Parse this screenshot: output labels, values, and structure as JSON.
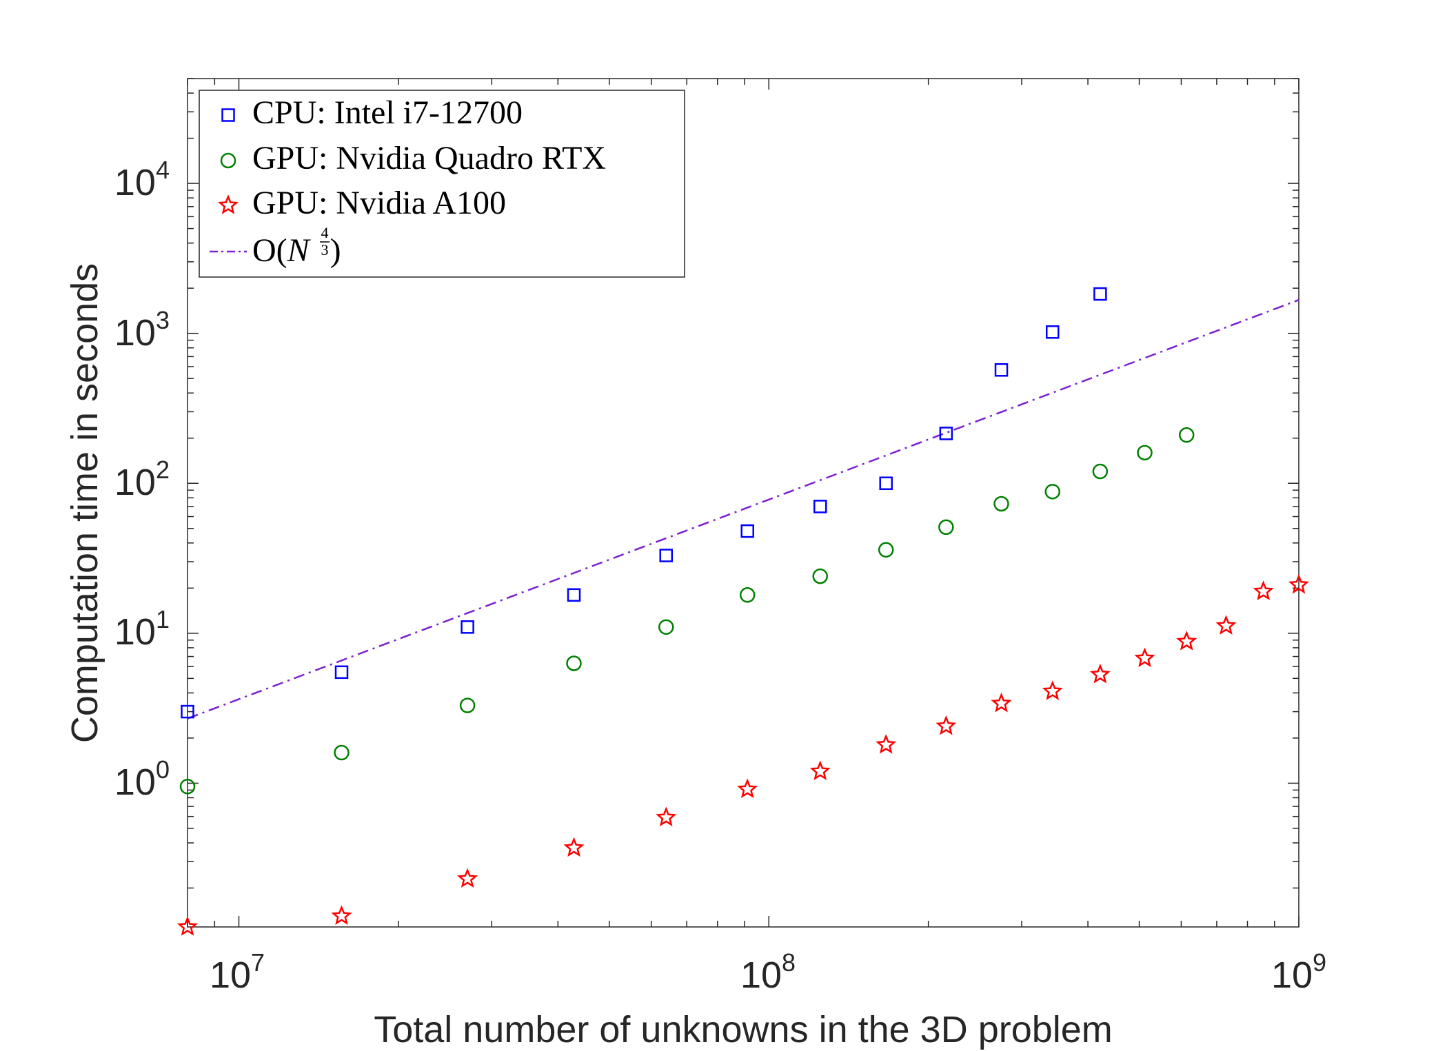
{
  "chart_data": {
    "type": "scatter",
    "xscale": "log",
    "yscale": "log",
    "xlim": [
      8000000,
      1000000000
    ],
    "ylim": [
      0.11,
      50000
    ],
    "xlabel": "Total number of unknowns in the 3D problem",
    "ylabel": "Computation time in seconds",
    "grid": false,
    "legend_location": "top-left",
    "x_ticks": [
      {
        "value": 10000000,
        "base": "10",
        "exp": "7"
      },
      {
        "value": 100000000,
        "base": "10",
        "exp": "8"
      },
      {
        "value": 1000000000,
        "base": "10",
        "exp": "9"
      }
    ],
    "y_ticks": [
      {
        "value": 1,
        "base": "10",
        "exp": "0"
      },
      {
        "value": 10,
        "base": "10",
        "exp": "1"
      },
      {
        "value": 100,
        "base": "10",
        "exp": "2"
      },
      {
        "value": 1000,
        "base": "10",
        "exp": "3"
      },
      {
        "value": 10000,
        "base": "10",
        "exp": "4"
      }
    ],
    "series": [
      {
        "name": "CPU: Intel i7-12700",
        "marker": "square",
        "color": "#0000ff",
        "x": [
          8000000,
          15625000,
          27000000,
          42875000,
          64000000,
          91125000,
          125000000,
          166375000,
          216000000,
          274625000,
          343000000,
          421875000
        ],
        "y": [
          3.0,
          5.5,
          11,
          18,
          33,
          48,
          70,
          100,
          215,
          570,
          1020,
          1830
        ]
      },
      {
        "name": "GPU: Nvidia Quadro RTX",
        "marker": "circle",
        "color": "#008000",
        "x": [
          8000000,
          15625000,
          27000000,
          42875000,
          64000000,
          91125000,
          125000000,
          166375000,
          216000000,
          274625000,
          343000000,
          421875000,
          512000000,
          614125000
        ],
        "y": [
          0.95,
          1.6,
          3.3,
          6.3,
          11,
          18,
          24,
          36,
          51,
          73,
          88,
          120,
          160,
          210
        ]
      },
      {
        "name": "GPU: Nvidia A100",
        "marker": "star",
        "color": "#ff0000",
        "x": [
          8000000,
          15625000,
          27000000,
          42875000,
          64000000,
          91125000,
          125000000,
          166375000,
          216000000,
          274625000,
          343000000,
          421875000,
          512000000,
          614125000,
          729000000,
          857375000,
          1000000000
        ],
        "y": [
          0.11,
          0.13,
          0.23,
          0.37,
          0.59,
          0.91,
          1.2,
          1.8,
          2.4,
          3.4,
          4.1,
          5.3,
          6.8,
          8.8,
          11.2,
          19,
          21
        ]
      }
    ],
    "reference_line": {
      "name": "O(N^(4/3))",
      "label_parts": {
        "o": "O(",
        "n": "N",
        "num": "4",
        "den": "3",
        "close": ")"
      },
      "style": "dash-dot",
      "color": "#7a1fd6",
      "x": [
        8000000,
        1000000000
      ],
      "y": [
        2.7,
        1670
      ]
    }
  }
}
